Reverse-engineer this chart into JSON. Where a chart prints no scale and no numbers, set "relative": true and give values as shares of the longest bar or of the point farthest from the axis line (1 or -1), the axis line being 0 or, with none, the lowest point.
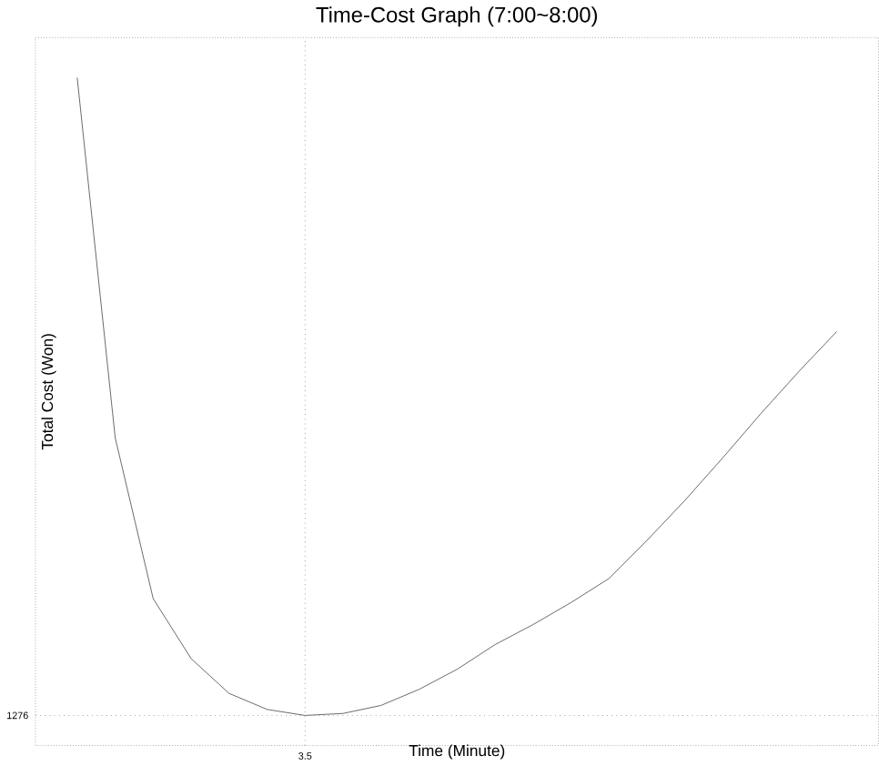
{
  "chart_data": {
    "type": "line",
    "title": "Time-Cost Graph (7:00~8:00)",
    "xlabel": "Time (Minute)",
    "ylabel": "Total Cost (Won)",
    "relative": true,
    "categories": [
      null,
      null,
      null,
      null,
      null,
      null,
      null,
      null,
      null,
      null,
      null,
      null,
      null,
      null,
      null,
      null,
      null,
      null,
      null,
      null,
      null
    ],
    "series": [
      {
        "color": "#555555",
        "values": [
          1.0,
          0.461,
          0.22,
          0.13,
          0.078,
          0.054,
          0.045,
          0.048,
          0.06,
          0.084,
          0.114,
          0.151,
          0.181,
          0.214,
          0.25,
          0.307,
          0.367,
          0.431,
          0.497,
          0.56,
          0.62
        ]
      }
    ],
    "annotations": [
      "3.5",
      "1276"
    ],
    "marker": "none",
    "line_style": "solid"
  }
}
